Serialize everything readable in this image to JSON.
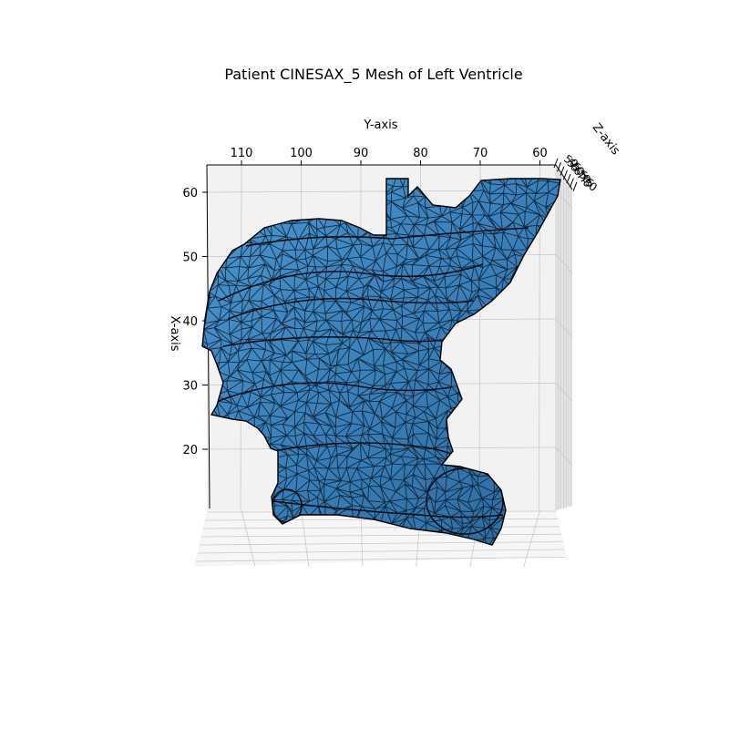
{
  "chart_data": {
    "type": "mesh3d",
    "title": "Patient CINESAX_5 Mesh of Left Ventricle",
    "xlabel": "X-axis",
    "ylabel": "Y-axis",
    "zlabel": "Z-axis",
    "x_ticks": [
      "20",
      "30",
      "40",
      "50",
      "60"
    ],
    "y_ticks": [
      "110",
      "100",
      "90",
      "80",
      "70",
      "60"
    ],
    "z_ticks": [
      "50",
      "55",
      "60",
      "65",
      "70",
      "75",
      "80"
    ],
    "x_range": [
      10,
      62
    ],
    "y_range": [
      55,
      116
    ],
    "grid": true,
    "mesh_face_color": "#3d86c1",
    "mesh_edge_color": "#000000",
    "pane_color": "#f2f2f2"
  }
}
